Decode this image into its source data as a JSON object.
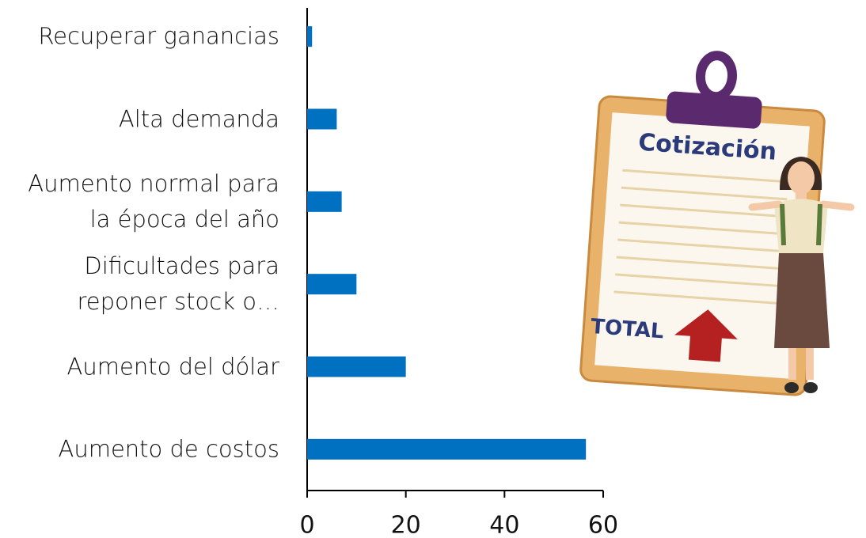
{
  "chart_data": {
    "type": "barh",
    "categories": [
      "Recuperar ganancias",
      "Alta demanda",
      "Aumento normal para la época del año",
      "Dificultades para reponer stock o…",
      "Aumento del dólar",
      "Aumento de costos"
    ],
    "values": [
      1,
      6,
      7,
      10,
      20,
      56.5
    ],
    "color": "#0070c0",
    "xlim": [
      0,
      60
    ],
    "xticks": [
      0,
      20,
      40,
      60
    ],
    "annotations": [
      "Cotización",
      "TOTAL"
    ]
  }
}
